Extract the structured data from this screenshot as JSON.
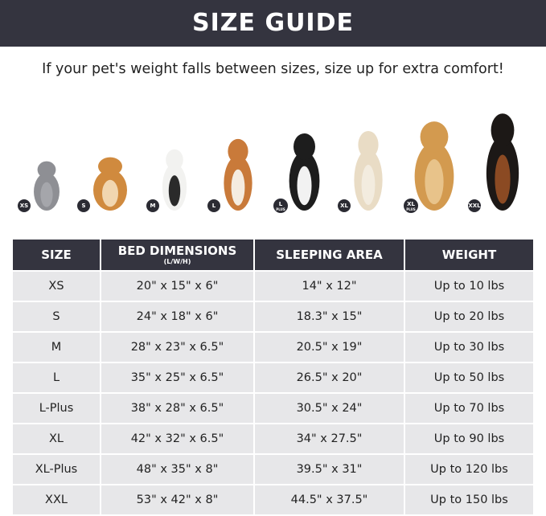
{
  "header": {
    "title": "SIZE GUIDE"
  },
  "subtitle": "If your pet's weight falls between sizes, size up for extra comfort!",
  "pets": [
    {
      "badge": "XS",
      "badge_sub": "",
      "colors": [
        "#8e8f94",
        "#a5a6ab"
      ]
    },
    {
      "badge": "S",
      "badge_sub": "",
      "colors": [
        "#d08a3e",
        "#f1d6b0"
      ]
    },
    {
      "badge": "M",
      "badge_sub": "",
      "colors": [
        "#f2f2f0",
        "#2a2a2a"
      ]
    },
    {
      "badge": "L",
      "badge_sub": "",
      "colors": [
        "#c97a3a",
        "#f5ece0"
      ]
    },
    {
      "badge": "L",
      "badge_sub": "PLUS",
      "colors": [
        "#1d1d1d",
        "#f2f2f2"
      ]
    },
    {
      "badge": "XL",
      "badge_sub": "",
      "colors": [
        "#e9dcc5",
        "#f3ecdf"
      ]
    },
    {
      "badge": "XL",
      "badge_sub": "PLUS",
      "colors": [
        "#d39a4f",
        "#e8c38a"
      ]
    },
    {
      "badge": "XXL",
      "badge_sub": "",
      "colors": [
        "#1c1816",
        "#8b4a23"
      ]
    }
  ],
  "table": {
    "headers": [
      "SIZE",
      "BED DIMENSIONS",
      "SLEEPING AREA",
      "WEIGHT"
    ],
    "dim_unit": "(L/W/H)",
    "rows": [
      [
        "XS",
        "20\" x 15\" x 6\"",
        "14\" x 12\"",
        "Up to 10 lbs"
      ],
      [
        "S",
        "24\" x 18\" x 6\"",
        "18.3\" x 15\"",
        "Up to 20 lbs"
      ],
      [
        "M",
        "28\" x 23\" x 6.5\"",
        "20.5\" x 19\"",
        "Up to 30 lbs"
      ],
      [
        "L",
        "35\" x 25\" x 6.5\"",
        "26.5\" x 20\"",
        "Up to 50 lbs"
      ],
      [
        "L-Plus",
        "38\" x 28\" x 6.5\"",
        "30.5\" x 24\"",
        "Up to 70 lbs"
      ],
      [
        "XL",
        "42\" x 32\" x 6.5\"",
        "34\" x 27.5\"",
        "Up to 90 lbs"
      ],
      [
        "XL-Plus",
        "48\" x 35\" x 8\"",
        "39.5\" x 31\"",
        "Up to 120 lbs"
      ],
      [
        "XXL",
        "53\" x 42\" x 8\"",
        "44.5\" x 37.5\"",
        "Up to 150 lbs"
      ]
    ]
  }
}
